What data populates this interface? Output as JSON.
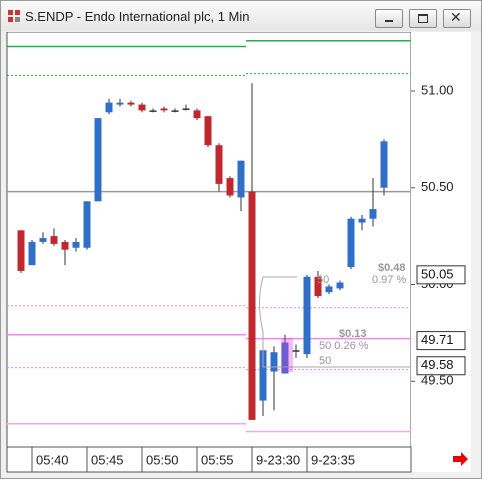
{
  "window_title": "S.ENDP - Endo International plc, 1 Min",
  "chart_data": {
    "type": "candlestick",
    "up_color": "#2f6fc8",
    "down_color": "#c0282d",
    "categories": [
      null,
      "05:40",
      null,
      null,
      null,
      null,
      "05:45",
      null,
      null,
      null,
      null,
      "05:50",
      null,
      null,
      null,
      null,
      "05:55",
      null,
      null,
      null,
      null,
      "9-23:30",
      null,
      null,
      null,
      null,
      "9-23:35",
      null,
      null,
      null,
      null,
      null,
      null,
      null
    ],
    "open": [
      50.28,
      50.1,
      50.22,
      50.25,
      50.22,
      50.19,
      50.19,
      50.43,
      50.89,
      50.93,
      50.94,
      50.93,
      50.9,
      50.91,
      50.9,
      50.91,
      50.9,
      50.87,
      50.72,
      50.55,
      50.45,
      50.48,
      49.4,
      49.55,
      49.54,
      49.66,
      49.64,
      50.04,
      49.96,
      49.98,
      50.09,
      50.32,
      50.34,
      50.5
    ],
    "high": [
      50.28,
      50.23,
      50.27,
      50.29,
      50.23,
      50.24,
      50.43,
      50.86,
      50.96,
      50.96,
      50.95,
      50.94,
      50.91,
      50.92,
      50.91,
      50.93,
      50.91,
      50.87,
      50.73,
      50.56,
      50.64,
      51.04,
      49.68,
      49.68,
      49.74,
      49.69,
      50.05,
      50.07,
      50.0,
      50.02,
      50.35,
      50.36,
      50.55,
      50.75
    ],
    "low": [
      50.06,
      50.1,
      50.21,
      50.2,
      50.1,
      50.17,
      50.18,
      50.43,
      50.88,
      50.92,
      50.92,
      50.89,
      50.89,
      50.89,
      50.89,
      50.9,
      50.85,
      50.71,
      50.48,
      50.45,
      50.38,
      49.3,
      49.32,
      49.35,
      49.54,
      49.62,
      49.62,
      49.93,
      49.95,
      49.97,
      50.08,
      50.28,
      50.3,
      50.46
    ],
    "close": [
      50.07,
      50.22,
      50.24,
      50.21,
      50.18,
      50.22,
      50.43,
      50.86,
      50.94,
      50.94,
      50.93,
      50.9,
      50.9,
      50.9,
      50.9,
      50.91,
      50.86,
      50.72,
      50.52,
      50.46,
      50.64,
      49.3,
      49.66,
      49.65,
      49.7,
      49.66,
      50.04,
      49.94,
      49.99,
      50.01,
      50.34,
      50.34,
      50.39,
      50.74
    ],
    "ylim": [
      49.16,
      51.3
    ],
    "yticks": [
      {
        "value": 49.5,
        "label": "49.50"
      },
      {
        "value": 50,
        "label": "50.00"
      },
      {
        "value": 50.5,
        "label": "50.50"
      },
      {
        "value": 51,
        "label": "51.00"
      }
    ],
    "levels": [
      {
        "color": "#1db34a",
        "dash": false,
        "values": [
          51.23,
          51.26
        ]
      },
      {
        "color": "#1db34a",
        "dash": true,
        "values": [
          51.08,
          51.09
        ]
      },
      {
        "color": "#9a9a9a",
        "dash": false,
        "values": [
          50.48,
          50.48
        ]
      },
      {
        "color": "#ee88ee",
        "dash": true,
        "values": [
          49.89,
          49.88
        ]
      },
      {
        "color": "#ee88ee",
        "dash": false,
        "values": [
          49.74,
          49.72
        ]
      },
      {
        "color": "#ee88ee",
        "dash": true,
        "values": [
          49.57,
          49.56
        ]
      },
      {
        "color": "#f0a8f0",
        "dash": false,
        "values": [
          49.28,
          49.24
        ]
      }
    ],
    "price_markers": [
      50.05,
      49.71,
      49.58
    ],
    "annotations": [
      "$0.48",
      "0.97 %",
      "50",
      "$0.13",
      "50 0.26 %",
      "50"
    ]
  }
}
